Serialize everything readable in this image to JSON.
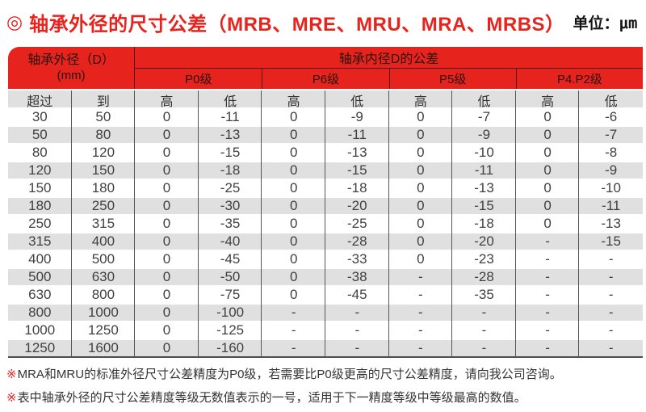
{
  "title": {
    "bullet": "◎",
    "text": "轴承外径的尺寸公差（MRB、MRE、MRU、MRA、MRBS）",
    "unit_label": "单位：μm"
  },
  "colors": {
    "accent_red": "#e7231d",
    "stripe_gray": "#e0e0e0",
    "divider_gray": "#565656",
    "header_text_dark": "#2a1210"
  },
  "table": {
    "outer_header": "轴承外径（D）",
    "outer_header_unit": "(mm)",
    "tolerance_header": "轴承内径D的公差",
    "grade_headers": [
      "P0级",
      "P6级",
      "P5级",
      "P4.P2级"
    ],
    "column_headers": [
      "超过",
      "到",
      "高",
      "低",
      "高",
      "低",
      "高",
      "低",
      "高",
      "低"
    ],
    "rows": [
      {
        "cells": [
          "30",
          "50",
          "0",
          "-11",
          "0",
          "-9",
          "0",
          "-7",
          "0",
          "-6"
        ]
      },
      {
        "cells": [
          "50",
          "80",
          "0",
          "-13",
          "0",
          "-11",
          "0",
          "-9",
          "0",
          "-7"
        ]
      },
      {
        "cells": [
          "80",
          "120",
          "0",
          "-15",
          "0",
          "-13",
          "0",
          "-10",
          "0",
          "-8"
        ]
      },
      {
        "cells": [
          "120",
          "150",
          "0",
          "-18",
          "0",
          "-15",
          "0",
          "-11",
          "0",
          "-9"
        ]
      },
      {
        "cells": [
          "150",
          "180",
          "0",
          "-25",
          "0",
          "-18",
          "0",
          "-13",
          "0",
          "-10"
        ]
      },
      {
        "cells": [
          "180",
          "250",
          "0",
          "-30",
          "0",
          "-20",
          "0",
          "-15",
          "0",
          "-11"
        ]
      },
      {
        "cells": [
          "250",
          "315",
          "0",
          "-35",
          "0",
          "-25",
          "0",
          "-18",
          "0",
          "-13"
        ]
      },
      {
        "cells": [
          "315",
          "400",
          "0",
          "-40",
          "0",
          "-28",
          "0",
          "-20",
          "-",
          "-15"
        ]
      },
      {
        "cells": [
          "400",
          "500",
          "0",
          "-45",
          "0",
          "-33",
          "0",
          "-23",
          "-",
          "-"
        ]
      },
      {
        "cells": [
          "500",
          "630",
          "0",
          "-50",
          "0",
          "-38",
          "-",
          "-28",
          "-",
          "-"
        ]
      },
      {
        "cells": [
          "630",
          "800",
          "0",
          "-75",
          "0",
          "-45",
          "-",
          "-35",
          "-",
          "-"
        ]
      },
      {
        "cells": [
          "800",
          "1000",
          "0",
          "-100",
          "-",
          "-",
          "-",
          "-",
          "-",
          "-"
        ]
      },
      {
        "cells": [
          "1000",
          "1250",
          "0",
          "-125",
          "-",
          "-",
          "-",
          "-",
          "-",
          "-"
        ]
      },
      {
        "cells": [
          "1250",
          "1600",
          "0",
          "-160",
          "-",
          "-",
          "-",
          "-",
          "-",
          "-"
        ]
      }
    ]
  },
  "note_marker": "※",
  "notes": [
    "MRA和MRU的标准外径尺寸公差精度为P0级，若需要比P0级更高的尺寸公差精度，请向我公司咨询。",
    "表中轴承外径的尺寸公差精度等级无数值表示的一号，适用于下一精度等级中等级最高的数值。"
  ]
}
